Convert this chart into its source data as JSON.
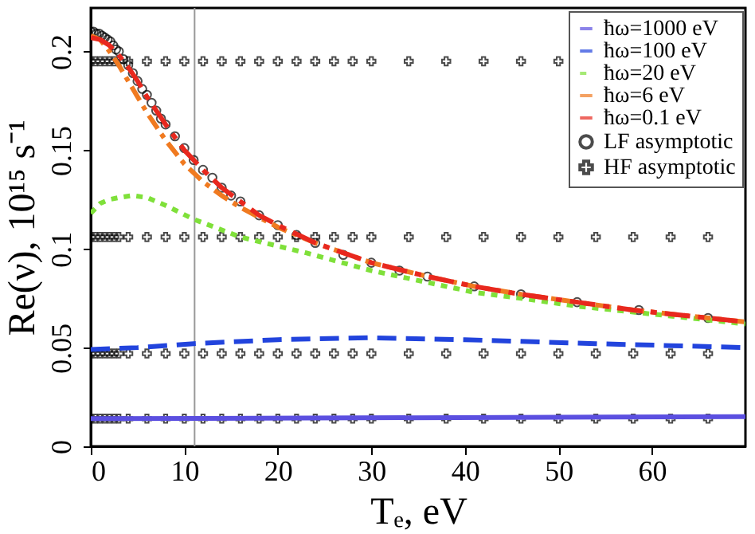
{
  "chart_data": {
    "type": "line",
    "xlabel": "Tₑ, eV",
    "ylabel": "Re(ν), 10¹⁵ s⁻¹",
    "xlim": [
      0,
      70
    ],
    "ylim": [
      0,
      0.222
    ],
    "xticks": [
      0,
      10,
      20,
      30,
      40,
      50,
      60
    ],
    "yticks": [
      0,
      0.05,
      0.1,
      0.15,
      0.2
    ],
    "grid": false,
    "legend": "top right",
    "ref_lines": [
      {
        "axis": "x",
        "value": 11.1,
        "color": "#999999"
      }
    ],
    "series": [
      {
        "name": "ħω=1000 eV",
        "line_style": "solid",
        "color": "#5b4fe0",
        "x": [
          0,
          70
        ],
        "values": [
          0.014,
          0.015
        ]
      },
      {
        "name": "ħω=100 eV",
        "line_style": "dashed",
        "color": "#2244dd",
        "x": [
          0,
          5,
          11,
          20,
          30,
          40,
          54,
          62,
          70
        ],
        "values": [
          0.049,
          0.05,
          0.052,
          0.054,
          0.055,
          0.054,
          0.052,
          0.051,
          0.05
        ]
      },
      {
        "name": "ħω=20 eV",
        "line_style": "dotted",
        "color": "#7fe03a",
        "x": [
          0,
          1,
          2,
          3,
          4.4,
          6,
          8,
          11,
          16,
          23,
          30,
          36,
          41,
          46,
          52,
          58,
          64,
          70
        ],
        "values": [
          0.118,
          0.123,
          0.125,
          0.126,
          0.127,
          0.126,
          0.122,
          0.115,
          0.106,
          0.098,
          0.089,
          0.083,
          0.078,
          0.075,
          0.071,
          0.068,
          0.065,
          0.062
        ]
      },
      {
        "name": "ħω=6 eV",
        "line_style": "dashdot",
        "color": "#f07a20",
        "x": [
          0,
          1,
          2,
          3,
          4,
          5,
          6,
          8,
          10,
          12,
          14,
          16,
          18,
          20,
          24,
          30,
          36,
          41,
          46,
          52,
          58,
          64,
          70
        ],
        "values": [
          0.208,
          0.206,
          0.2,
          0.193,
          0.185,
          0.177,
          0.169,
          0.155,
          0.143,
          0.134,
          0.127,
          0.121,
          0.116,
          0.111,
          0.103,
          0.093,
          0.086,
          0.081,
          0.077,
          0.073,
          0.069,
          0.066,
          0.063
        ]
      },
      {
        "name": "ħω=0.1 eV",
        "line_style": "longdashdot",
        "color": "#e8281e",
        "x": [
          0,
          1,
          2,
          3,
          4,
          5,
          6,
          8,
          10,
          12,
          14,
          16,
          18,
          20,
          24,
          30,
          36,
          41,
          46,
          52,
          58,
          64,
          70
        ],
        "values": [
          0.207,
          0.206,
          0.203,
          0.198,
          0.192,
          0.185,
          0.177,
          0.163,
          0.15,
          0.14,
          0.131,
          0.124,
          0.117,
          0.112,
          0.103,
          0.093,
          0.086,
          0.081,
          0.077,
          0.073,
          0.069,
          0.066,
          0.063
        ]
      },
      {
        "name": "LF asymptotic",
        "type": "scatter",
        "marker": "circle",
        "color": "#000000",
        "x": [
          0,
          0.3,
          0.6,
          0.9,
          1.2,
          1.5,
          1.8,
          2.1,
          2.4,
          2.7,
          3,
          3.5,
          4,
          4.5,
          5,
          5.5,
          6,
          6.5,
          7,
          7.5,
          8,
          9,
          10,
          11,
          12,
          13,
          14,
          15,
          16,
          18,
          20,
          22,
          24,
          27,
          30,
          33,
          36,
          41,
          46,
          52,
          58.6,
          66
        ],
        "values": [
          0.21,
          0.21,
          0.209,
          0.209,
          0.208,
          0.207,
          0.206,
          0.205,
          0.203,
          0.201,
          0.2,
          0.196,
          0.193,
          0.189,
          0.185,
          0.181,
          0.178,
          0.174,
          0.17,
          0.166,
          0.163,
          0.157,
          0.151,
          0.145,
          0.14,
          0.136,
          0.131,
          0.127,
          0.124,
          0.117,
          0.112,
          0.107,
          0.103,
          0.097,
          0.093,
          0.089,
          0.086,
          0.081,
          0.077,
          0.073,
          0.069,
          0.065
        ]
      },
      {
        "name": "HF asymptotic",
        "type": "scatter",
        "marker": "cross",
        "color": "#000000",
        "x": [
          0,
          0.5,
          1,
          1.5,
          2,
          2.5,
          3,
          4,
          6,
          8,
          10,
          12,
          14,
          16,
          18,
          20,
          22,
          24,
          26,
          28,
          30,
          34,
          38,
          42,
          46,
          50,
          0,
          0.5,
          1,
          1.5,
          2,
          2.5,
          3,
          4,
          6,
          8,
          10,
          12,
          14,
          16,
          18,
          20,
          22,
          24,
          26,
          28,
          30,
          34,
          38,
          42,
          46,
          50,
          54,
          58,
          62,
          66,
          0,
          0.5,
          1,
          1.5,
          2,
          2.5,
          3,
          4,
          6,
          8,
          10,
          12,
          14,
          16,
          18,
          20,
          22,
          24,
          26,
          28,
          30,
          34,
          38,
          42,
          46,
          50,
          54,
          58,
          62,
          66,
          0,
          0.5,
          1,
          1.5,
          2,
          2.5,
          3,
          4,
          6,
          8,
          10,
          12,
          14,
          16,
          18,
          20,
          22,
          24,
          26,
          28,
          30,
          34,
          38,
          42,
          46,
          50,
          54,
          58,
          62,
          66
        ],
        "values": [
          0.195,
          0.195,
          0.195,
          0.195,
          0.195,
          0.195,
          0.195,
          0.195,
          0.195,
          0.195,
          0.195,
          0.195,
          0.195,
          0.195,
          0.195,
          0.195,
          0.195,
          0.195,
          0.195,
          0.195,
          0.195,
          0.195,
          0.195,
          0.195,
          0.195,
          0.195,
          0.106,
          0.106,
          0.106,
          0.106,
          0.106,
          0.106,
          0.106,
          0.106,
          0.106,
          0.106,
          0.106,
          0.106,
          0.106,
          0.106,
          0.106,
          0.106,
          0.106,
          0.106,
          0.106,
          0.106,
          0.106,
          0.106,
          0.106,
          0.106,
          0.106,
          0.106,
          0.106,
          0.106,
          0.106,
          0.106,
          0.047,
          0.047,
          0.047,
          0.047,
          0.047,
          0.047,
          0.047,
          0.047,
          0.047,
          0.047,
          0.047,
          0.047,
          0.047,
          0.047,
          0.047,
          0.047,
          0.047,
          0.047,
          0.047,
          0.047,
          0.047,
          0.047,
          0.047,
          0.047,
          0.047,
          0.047,
          0.047,
          0.047,
          0.047,
          0.047,
          0.014,
          0.014,
          0.014,
          0.014,
          0.014,
          0.014,
          0.014,
          0.014,
          0.014,
          0.014,
          0.014,
          0.014,
          0.014,
          0.014,
          0.014,
          0.014,
          0.014,
          0.014,
          0.014,
          0.014,
          0.014,
          0.014,
          0.014,
          0.014,
          0.014,
          0.014,
          0.014,
          0.014,
          0.014,
          0.014
        ]
      }
    ]
  }
}
